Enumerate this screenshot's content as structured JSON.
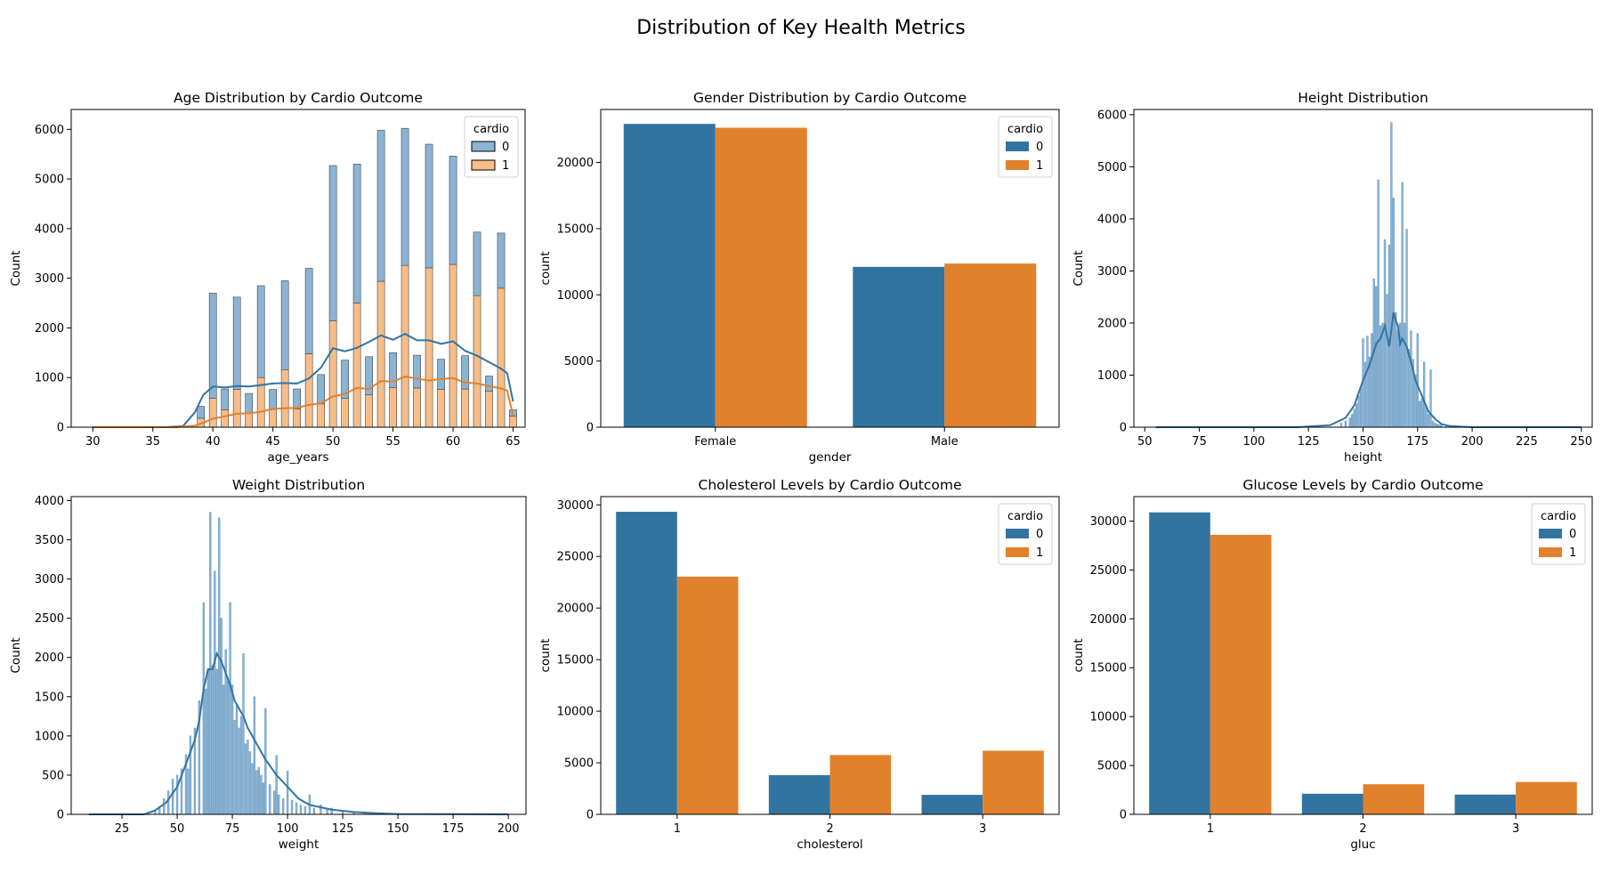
{
  "figure_title": "Distribution of Key Health Metrics",
  "colors": {
    "series0": "#3274a1",
    "series1": "#e1812c",
    "hist0": "#8ab4d4",
    "hist1": "#f7bd88"
  },
  "chart_data": [
    {
      "id": "age",
      "type": "bar",
      "title": "Age Distribution by Cardio Outcome",
      "xlabel": "age_years",
      "ylabel": "Count",
      "xlim": [
        28.2,
        66.0
      ],
      "ylim": [
        0,
        6400
      ],
      "xticks": [
        30,
        35,
        40,
        45,
        50,
        55,
        60,
        65
      ],
      "yticks": [
        0,
        1000,
        2000,
        3000,
        4000,
        5000,
        6000
      ],
      "legend": {
        "title": "cardio",
        "entries": [
          "0",
          "1"
        ],
        "position": "top-right"
      },
      "stacked_bars": {
        "x": [
          39.0,
          40.0,
          41.0,
          42.0,
          43.0,
          44.0,
          45.0,
          46.0,
          47.0,
          48.0,
          49.0,
          50.0,
          51.0,
          52.0,
          53.0,
          54.0,
          55.0,
          56.0,
          57.0,
          58.0,
          59.0,
          60.0,
          61.0,
          62.0,
          63.0,
          64.0,
          65.0
        ],
        "total": [
          420,
          2700,
          770,
          2620,
          680,
          2850,
          760,
          2950,
          770,
          3200,
          1060,
          5270,
          1350,
          5300,
          1420,
          5980,
          1500,
          6020,
          1450,
          5700,
          1370,
          5460,
          1440,
          3930,
          1030,
          3910,
          350
        ],
        "series": [
          {
            "name": "1",
            "values": [
              180,
              580,
              350,
              760,
              280,
              1000,
              360,
              1160,
              370,
              1480,
              470,
              2140,
              580,
              2500,
              650,
              2940,
              800,
              3260,
              790,
              3210,
              760,
              3280,
              770,
              2650,
              730,
              2800,
              220
            ]
          }
        ]
      },
      "kde": [
        {
          "name": "0",
          "x": [
            30,
            36,
            37.5,
            38.5,
            39.2,
            40,
            41,
            42,
            43,
            44,
            45,
            46,
            47,
            48,
            49,
            50,
            51,
            52,
            53,
            54,
            55,
            56,
            57,
            58,
            59,
            60,
            61,
            62,
            63,
            64,
            64.5,
            65
          ],
          "values": [
            0,
            0,
            20,
            300,
            650,
            820,
            800,
            830,
            820,
            850,
            880,
            890,
            880,
            980,
            1200,
            1590,
            1530,
            1600,
            1720,
            1850,
            1760,
            1880,
            1750,
            1750,
            1680,
            1730,
            1540,
            1440,
            1310,
            1180,
            1090,
            520
          ]
        },
        {
          "name": "1",
          "x": [
            30,
            37,
            38.5,
            39.5,
            40,
            41,
            42,
            43,
            44,
            45,
            46,
            47,
            48,
            49,
            50,
            51,
            52,
            53,
            54,
            55,
            56,
            57,
            58,
            59,
            60,
            61,
            62,
            63,
            64,
            64.5,
            65
          ],
          "values": [
            0,
            0,
            30,
            120,
            170,
            220,
            270,
            280,
            310,
            370,
            380,
            390,
            450,
            480,
            620,
            670,
            790,
            770,
            930,
            920,
            1020,
            980,
            940,
            970,
            990,
            900,
            880,
            830,
            780,
            740,
            230
          ]
        }
      ]
    },
    {
      "id": "gender",
      "type": "bar",
      "title": "Gender Distribution by Cardio Outcome",
      "xlabel": "gender",
      "ylabel": "count",
      "categories": [
        "Female",
        "Male"
      ],
      "ylim": [
        0,
        24000
      ],
      "yticks": [
        0,
        5000,
        10000,
        15000,
        20000
      ],
      "legend": {
        "title": "cardio",
        "entries": [
          "0",
          "1"
        ],
        "position": "top-right"
      },
      "series": [
        {
          "name": "0",
          "values": [
            22910,
            12110
          ]
        },
        {
          "name": "1",
          "values": [
            22620,
            12360
          ]
        }
      ]
    },
    {
      "id": "height",
      "type": "bar",
      "title": "Height Distribution",
      "xlabel": "height",
      "ylabel": "Count",
      "xlim": [
        45,
        255
      ],
      "ylim": [
        0,
        6100
      ],
      "xticks": [
        50,
        75,
        100,
        125,
        150,
        175,
        200,
        225,
        250
      ],
      "yticks": [
        0,
        1000,
        2000,
        3000,
        4000,
        5000,
        6000
      ],
      "histogram": {
        "x": [
          140,
          142,
          144,
          145,
          146,
          147,
          148,
          149,
          150,
          151,
          152,
          153,
          154,
          155,
          156,
          157,
          158,
          159,
          160,
          161,
          162,
          163,
          164,
          165,
          166,
          167,
          168,
          169,
          170,
          171,
          172,
          173,
          174,
          175,
          176,
          177,
          178,
          179,
          180,
          181,
          182,
          183,
          184,
          185,
          186,
          188,
          190
        ],
        "values": [
          80,
          120,
          180,
          250,
          350,
          450,
          600,
          750,
          1700,
          1250,
          1750,
          1350,
          1800,
          2850,
          2700,
          4750,
          1950,
          2000,
          3600,
          2550,
          3500,
          5850,
          4400,
          2200,
          1850,
          2000,
          4700,
          2000,
          3800,
          1500,
          1850,
          1300,
          1000,
          1800,
          500,
          550,
          1250,
          380,
          250,
          1100,
          120,
          80,
          60,
          50,
          40,
          20,
          10
        ]
      },
      "kde": {
        "x": [
          55,
          120,
          135,
          142,
          146,
          150,
          153,
          156,
          158,
          160,
          162,
          164,
          165,
          166,
          167,
          168,
          170,
          172,
          174,
          176,
          178,
          180,
          183,
          186,
          190,
          200,
          250
        ],
        "values": [
          0,
          0,
          40,
          180,
          420,
          900,
          1200,
          1600,
          1700,
          1950,
          1550,
          2200,
          2050,
          1950,
          1600,
          1700,
          1550,
          1250,
          900,
          700,
          500,
          300,
          160,
          60,
          20,
          0,
          0
        ]
      }
    },
    {
      "id": "weight",
      "type": "bar",
      "title": "Weight Distribution",
      "xlabel": "weight",
      "ylabel": "Count",
      "xlim": [
        2,
        208
      ],
      "ylim": [
        0,
        4050
      ],
      "xticks": [
        25,
        50,
        75,
        100,
        125,
        150,
        175,
        200
      ],
      "yticks": [
        0,
        500,
        1000,
        1500,
        2000,
        2500,
        3000,
        3500,
        4000
      ],
      "histogram": {
        "x": [
          40,
          42,
          44,
          46,
          48,
          50,
          52,
          54,
          55,
          56,
          58,
          60,
          62,
          63,
          64,
          65,
          66,
          67,
          68,
          69,
          70,
          71,
          72,
          73,
          74,
          75,
          76,
          77,
          78,
          79,
          80,
          81,
          82,
          83,
          84,
          85,
          86,
          87,
          88,
          89,
          90,
          92,
          94,
          95,
          96,
          98,
          100,
          102,
          104,
          106,
          108,
          110,
          112,
          115,
          118,
          120,
          125,
          130,
          135,
          140,
          150
        ],
        "values": [
          50,
          100,
          200,
          300,
          450,
          500,
          580,
          760,
          580,
          1000,
          1100,
          1450,
          2700,
          1600,
          1850,
          3850,
          1900,
          3100,
          1850,
          3780,
          2500,
          1650,
          2100,
          1700,
          2700,
          1650,
          1200,
          1400,
          1100,
          1250,
          2050,
          900,
          950,
          800,
          650,
          1500,
          560,
          600,
          500,
          400,
          1350,
          380,
          300,
          750,
          250,
          200,
          550,
          180,
          150,
          120,
          100,
          250,
          80,
          120,
          60,
          80,
          40,
          30,
          20,
          15,
          10
        ]
      },
      "kde": {
        "x": [
          10,
          35,
          40,
          45,
          50,
          55,
          58,
          60,
          62,
          64,
          66,
          68,
          70,
          72,
          74,
          76,
          78,
          80,
          82,
          84,
          86,
          88,
          90,
          95,
          100,
          105,
          110,
          120,
          130,
          140,
          150,
          200
        ],
        "values": [
          0,
          0,
          50,
          150,
          350,
          720,
          950,
          1200,
          1600,
          1850,
          1850,
          2050,
          1950,
          1800,
          1650,
          1450,
          1350,
          1250,
          1100,
          1000,
          900,
          800,
          700,
          500,
          350,
          200,
          120,
          60,
          30,
          15,
          5,
          0
        ]
      }
    },
    {
      "id": "cholesterol",
      "type": "bar",
      "title": "Cholesterol Levels by Cardio Outcome",
      "xlabel": "cholesterol",
      "ylabel": "count",
      "categories": [
        "1",
        "2",
        "3"
      ],
      "ylim": [
        0,
        30800
      ],
      "yticks": [
        0,
        5000,
        10000,
        15000,
        20000,
        25000,
        30000
      ],
      "legend": {
        "title": "cardio",
        "entries": [
          "0",
          "1"
        ],
        "position": "top-right"
      },
      "series": [
        {
          "name": "0",
          "values": [
            29330,
            3800,
            1890
          ]
        },
        {
          "name": "1",
          "values": [
            23050,
            5750,
            6170
          ]
        }
      ]
    },
    {
      "id": "gluc",
      "type": "bar",
      "title": "Glucose Levels by Cardio Outcome",
      "xlabel": "gluc",
      "ylabel": "count",
      "categories": [
        "1",
        "2",
        "3"
      ],
      "ylim": [
        0,
        32500
      ],
      "yticks": [
        0,
        5000,
        10000,
        15000,
        20000,
        25000,
        30000
      ],
      "legend": {
        "title": "cardio",
        "entries": [
          "0",
          "1"
        ],
        "position": "top-right"
      },
      "series": [
        {
          "name": "0",
          "values": [
            30890,
            2110,
            2020
          ]
        },
        {
          "name": "1",
          "values": [
            28590,
            3080,
            3310
          ]
        }
      ]
    }
  ]
}
